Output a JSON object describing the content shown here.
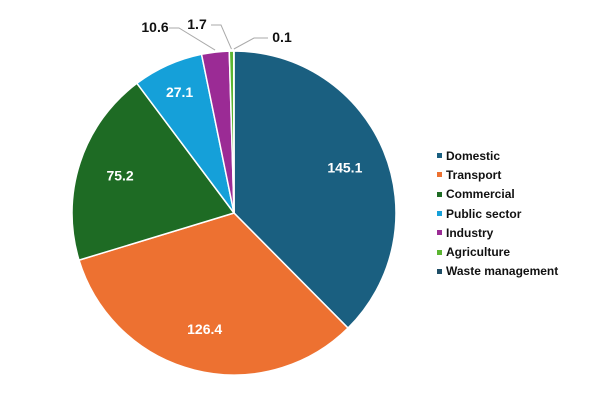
{
  "chart_data": {
    "type": "pie",
    "title": "",
    "categories": [
      "Domestic",
      "Transport",
      "Commercial",
      "Public sector",
      "Industry",
      "Agriculture",
      "Waste management"
    ],
    "values": [
      145.1,
      126.4,
      75.2,
      27.1,
      10.6,
      1.7,
      0.1
    ],
    "value_labels": [
      "145.1",
      "126.4",
      "75.2",
      "27.1",
      "10.6",
      "1.7",
      "0.1"
    ],
    "colors": [
      "#1a5f80",
      "#ed7131",
      "#1e6b24",
      "#15a0d9",
      "#9b2b95",
      "#5bb531",
      "#1f4e66"
    ],
    "start": "top",
    "direction": "clockwise",
    "legend_position": "right"
  }
}
